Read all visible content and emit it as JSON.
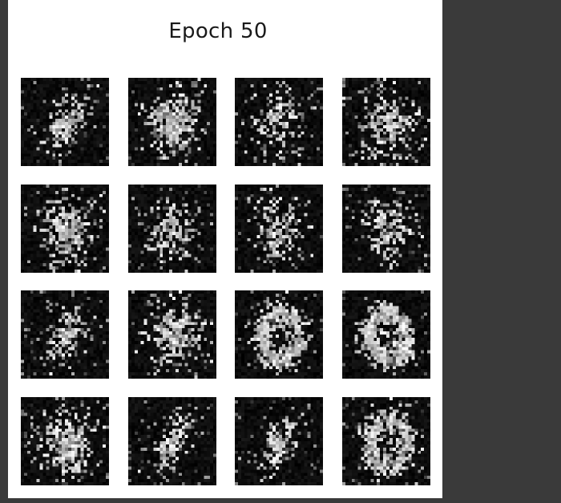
{
  "window": {
    "title": "Epoch 50",
    "background": "#3a3a3a",
    "panel_background": "#ffffff"
  },
  "grid": {
    "rows": 4,
    "cols": 4,
    "image_size": 28,
    "samples": [
      {
        "shape": "slash"
      },
      {
        "shape": "blob"
      },
      {
        "shape": "sparse"
      },
      {
        "shape": "blob"
      },
      {
        "shape": "blob"
      },
      {
        "shape": "sparse"
      },
      {
        "shape": "sparse"
      },
      {
        "shape": "sparse"
      },
      {
        "shape": "slash"
      },
      {
        "shape": "blob"
      },
      {
        "shape": "ring"
      },
      {
        "shape": "ring"
      },
      {
        "shape": "blob"
      },
      {
        "shape": "slash"
      },
      {
        "shape": "slash"
      },
      {
        "shape": "ring"
      }
    ]
  }
}
